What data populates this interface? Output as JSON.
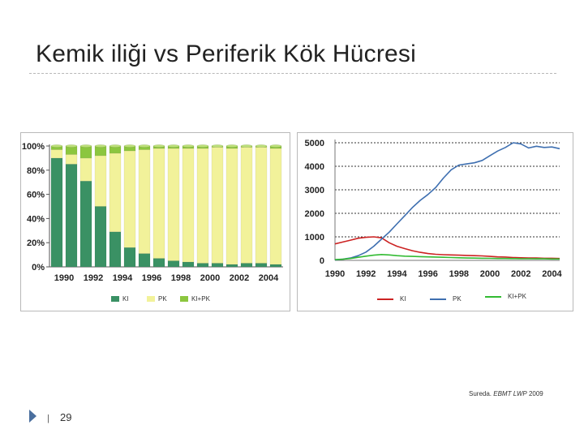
{
  "slide": {
    "title": "Kemik iliği vs Periferik Kök Hücresi",
    "source_prefix": "Sureda. ",
    "source_italic": "EBMT LWP",
    "source_year": " 2009",
    "footer_bar": "|",
    "page_number": "29",
    "colors": {
      "accent": "#4a6f9e"
    }
  },
  "chart_data": [
    {
      "type": "bar",
      "stacked": true,
      "percent": true,
      "x": [
        1990,
        1991,
        1992,
        1993,
        1994,
        1995,
        1996,
        1997,
        1998,
        1999,
        2000,
        2001,
        2002,
        2003,
        2004,
        2005
      ],
      "tick_labels": [
        "1990",
        "1992",
        "1994",
        "1996",
        "1998",
        "2000",
        "2002",
        "2004"
      ],
      "ylim": [
        0,
        100
      ],
      "yticks": [
        "0%",
        "20%",
        "40%",
        "60%",
        "80%",
        "100%"
      ],
      "series": [
        {
          "name": "KI",
          "color": "#3a9164",
          "values": [
            90,
            85,
            71,
            50,
            29,
            16,
            11,
            7,
            5,
            4,
            3,
            3,
            2,
            3,
            3,
            2
          ]
        },
        {
          "name": "PK",
          "color": "#f2f29a",
          "values": [
            7,
            8,
            19,
            42,
            65,
            80,
            86,
            91,
            93,
            94,
            95,
            96,
            96,
            96,
            96,
            96
          ]
        },
        {
          "name": "KI+PK",
          "color": "#8cc63f",
          "values": [
            3,
            7,
            10,
            8,
            6,
            4,
            3,
            2,
            2,
            2,
            2,
            1,
            2,
            1,
            1,
            2
          ]
        }
      ],
      "legend_position": "bottom",
      "grid": false
    },
    {
      "type": "line",
      "x": [
        1990,
        1990.5,
        1991,
        1991.5,
        1992,
        1992.5,
        1993,
        1993.5,
        1994,
        1994.5,
        1995,
        1995.5,
        1996,
        1996.5,
        1997,
        1997.5,
        1998,
        1998.5,
        1999,
        1999.5,
        2000,
        2000.5,
        2001,
        2001.5,
        2002,
        2002.5,
        2003,
        2003.5,
        2004,
        2004.5
      ],
      "tick_labels": [
        "1990",
        "1992",
        "1994",
        "1996",
        "1998",
        "2000",
        "2002",
        "2004"
      ],
      "xlim": [
        1990,
        2004.5
      ],
      "ylim": [
        0,
        5000
      ],
      "yticks": [
        "0",
        "1000",
        "2000",
        "3000",
        "4000",
        "5000"
      ],
      "series": [
        {
          "name": "KI",
          "color": "#cc2222",
          "values": [
            700,
            780,
            860,
            940,
            980,
            1000,
            960,
            750,
            600,
            500,
            410,
            340,
            290,
            260,
            240,
            230,
            220,
            210,
            200,
            190,
            170,
            150,
            140,
            120,
            110,
            100,
            100,
            90,
            90,
            80
          ]
        },
        {
          "name": "PK",
          "color": "#3e6fb0",
          "values": [
            20,
            50,
            100,
            200,
            350,
            600,
            900,
            1200,
            1550,
            1900,
            2250,
            2550,
            2800,
            3100,
            3500,
            3850,
            4050,
            4100,
            4150,
            4250,
            4450,
            4650,
            4800,
            5000,
            4950,
            4780,
            4850,
            4800,
            4820,
            4750
          ]
        },
        {
          "name": "KI+PK",
          "color": "#33bb33",
          "values": [
            30,
            50,
            80,
            130,
            180,
            220,
            250,
            230,
            200,
            180,
            170,
            160,
            150,
            140,
            130,
            120,
            110,
            100,
            95,
            90,
            85,
            80,
            80,
            75,
            70,
            70,
            65,
            65,
            60,
            60
          ]
        }
      ],
      "legend_position": "bottom",
      "grid": true
    }
  ]
}
